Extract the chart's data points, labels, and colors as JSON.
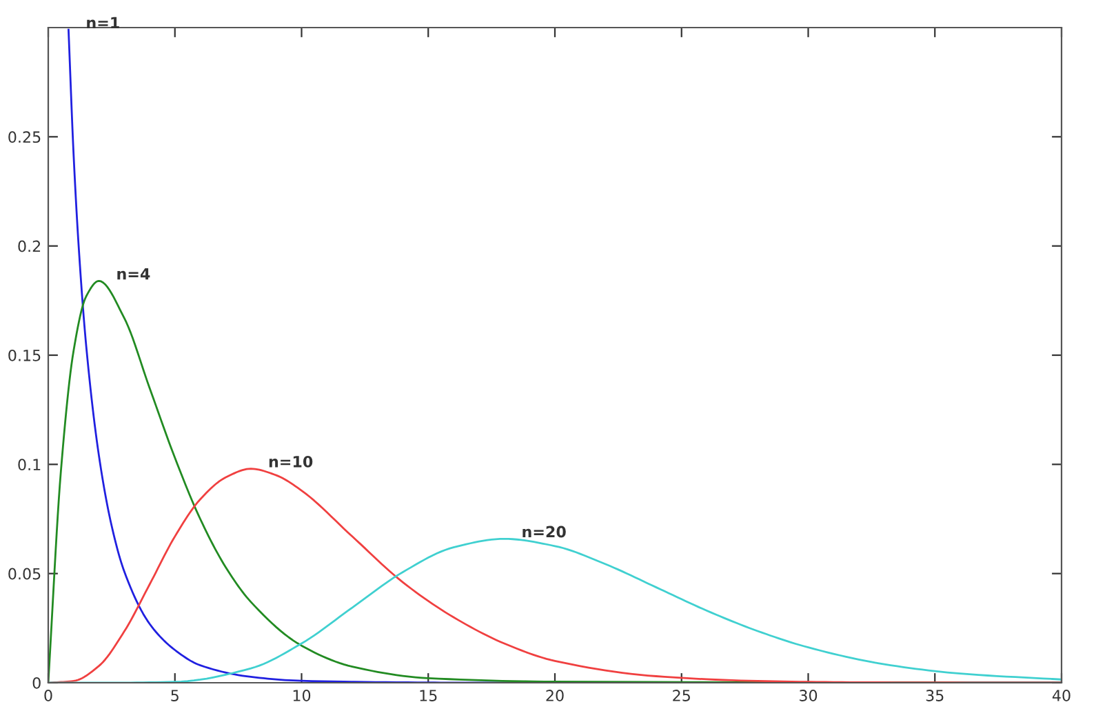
{
  "chart_data": {
    "type": "line",
    "xlim": [
      0,
      40
    ],
    "ylim": [
      0,
      0.3
    ],
    "xticks": [
      0,
      5,
      10,
      15,
      20,
      25,
      30,
      35,
      40
    ],
    "yticks": [
      0,
      0.05,
      0.1,
      0.15,
      0.2,
      0.25
    ],
    "grid": false,
    "legend": false,
    "marker": "none",
    "line_style": "solid",
    "series": [
      {
        "name": "n=1",
        "color": "#2020e0",
        "x": [
          0.8,
          1,
          1.2,
          1.5,
          2,
          2.5,
          3,
          4,
          5,
          6,
          8,
          10,
          15,
          18,
          40
        ],
        "values": [
          0.299,
          0.242,
          0.2,
          0.154,
          0.104,
          0.072,
          0.051,
          0.027,
          0.015,
          0.008,
          0.0027,
          0.0009,
          0.0001,
          0,
          0
        ]
      },
      {
        "name": "n=4",
        "color": "#228b22",
        "x": [
          0,
          0.5,
          1,
          1.5,
          2,
          3,
          4,
          5,
          6,
          7,
          8,
          10,
          12,
          15,
          20,
          40
        ],
        "values": [
          0,
          0.097,
          0.152,
          0.177,
          0.184,
          0.167,
          0.135,
          0.103,
          0.075,
          0.053,
          0.037,
          0.017,
          0.0074,
          0.0021,
          0.0005,
          0
        ]
      },
      {
        "name": "n=10",
        "color": "#f04040",
        "x": [
          0,
          1,
          2,
          3,
          4,
          5,
          6,
          7,
          8,
          9,
          10,
          12,
          14,
          16,
          18,
          20,
          24,
          28,
          32,
          40
        ],
        "values": [
          0,
          0.0008,
          0.0077,
          0.0235,
          0.045,
          0.067,
          0.084,
          0.094,
          0.098,
          0.095,
          0.088,
          0.067,
          0.046,
          0.03,
          0.018,
          0.01,
          0.003,
          0.0008,
          0.0002,
          0
        ]
      },
      {
        "name": "n=20",
        "color": "#40d0d0",
        "x": [
          0,
          2,
          5,
          8,
          10,
          12,
          14,
          16,
          18,
          20,
          22,
          24,
          26,
          28,
          30,
          33,
          36,
          40
        ],
        "values": [
          0,
          0,
          0.0004,
          0.0066,
          0.018,
          0.0344,
          0.0507,
          0.062,
          0.0659,
          0.0626,
          0.0543,
          0.0437,
          0.033,
          0.0237,
          0.0162,
          0.0085,
          0.0042,
          0.0015
        ]
      }
    ]
  }
}
